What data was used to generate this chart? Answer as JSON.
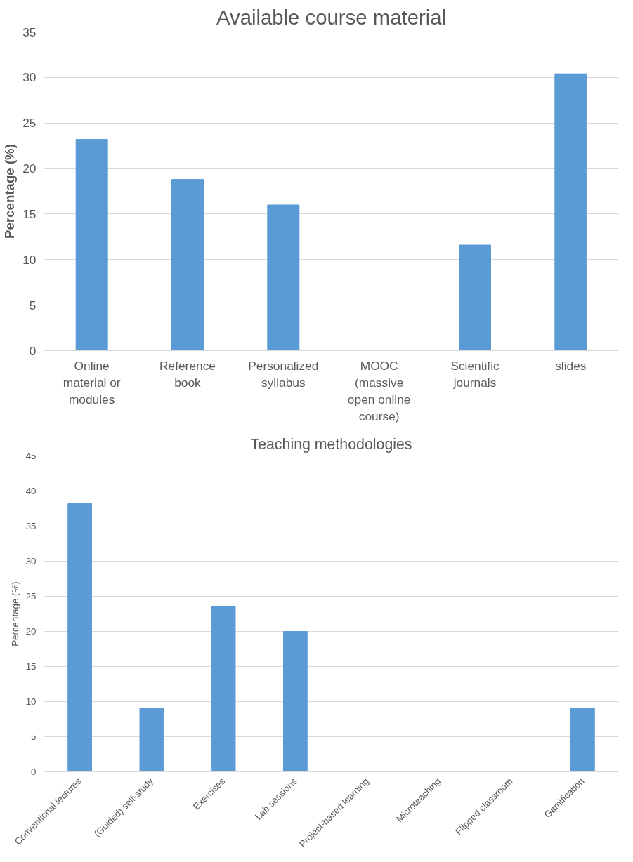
{
  "chart_data": [
    {
      "type": "bar",
      "title": "Available course material",
      "ylabel": "Percentage (%)",
      "categories": [
        "Online material or modules",
        "Reference book",
        "Personalized syllabus",
        "MOOC (massive open online course)",
        "Scientific journals",
        "slides"
      ],
      "series": [
        {
          "color": "#5b9bd5",
          "values": [
            23.2,
            18.8,
            16.0,
            0,
            11.6,
            30.4
          ]
        }
      ],
      "ylim": [
        0,
        35
      ],
      "yticks": [
        0,
        5,
        10,
        15,
        20,
        25,
        30,
        35
      ],
      "grid": "y"
    },
    {
      "type": "bar",
      "title": "Teaching methodologies",
      "ylabel": "Percentage (%)",
      "categories": [
        "Conventional lectures",
        "(Guided) self-study",
        "Exercises",
        "Lab sessions",
        "Project-based learning",
        "Microteaching",
        "Flipped classroom",
        "Gamification"
      ],
      "series": [
        {
          "color": "#5b9bd5",
          "values": [
            38.2,
            9.1,
            23.6,
            20.0,
            0,
            0,
            0,
            9.1
          ]
        }
      ],
      "ylim": [
        0,
        45
      ],
      "yticks": [
        0,
        5,
        10,
        15,
        20,
        25,
        30,
        35,
        40,
        45
      ],
      "grid": "y"
    }
  ]
}
